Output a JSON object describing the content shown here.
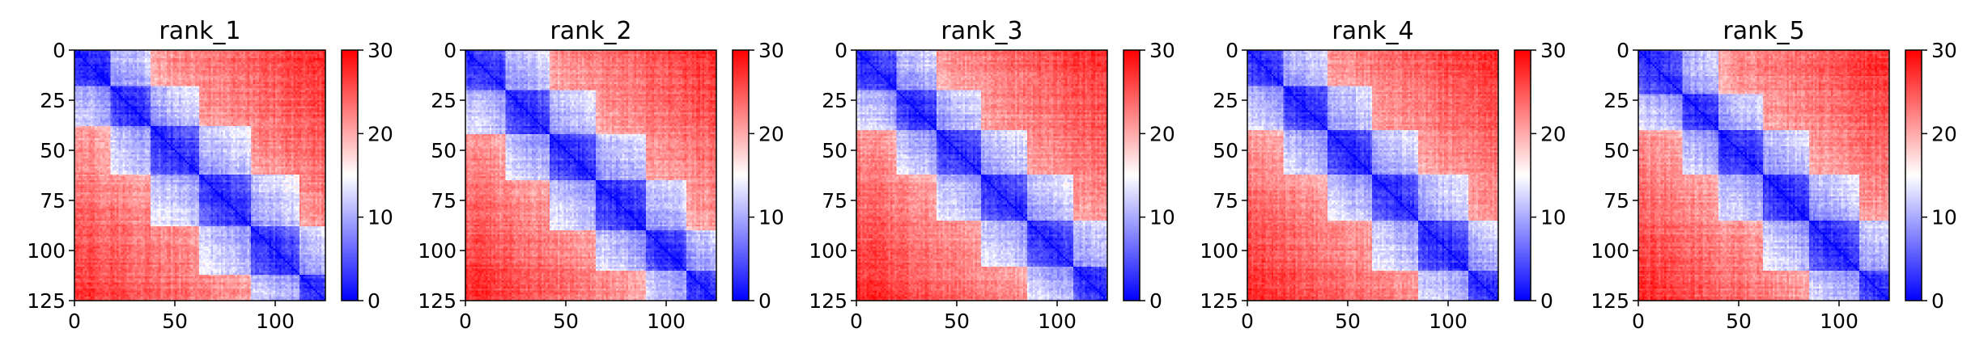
{
  "colormap": {
    "name": "bwr",
    "low_color": "#0000ff",
    "mid_color": "#ffffff",
    "high_color": "#ff0000",
    "vmin": 0,
    "vmax": 30,
    "ticks": [
      0,
      10,
      20,
      30
    ]
  },
  "chart_data": [
    {
      "type": "heatmap",
      "title": "rank_1",
      "n": 125,
      "x_ticks": [
        0,
        50,
        100
      ],
      "y_ticks": [
        0,
        25,
        50,
        75,
        100,
        125
      ],
      "domains": [
        [
          0,
          18
        ],
        [
          18,
          38
        ],
        [
          38,
          62
        ],
        [
          62,
          88
        ],
        [
          88,
          112
        ],
        [
          112,
          125
        ]
      ],
      "colorbar": {
        "min": 0,
        "max": 30,
        "ticks": [
          0,
          10,
          20,
          30
        ]
      }
    },
    {
      "type": "heatmap",
      "title": "rank_2",
      "n": 125,
      "x_ticks": [
        0,
        50,
        100
      ],
      "y_ticks": [
        0,
        25,
        50,
        75,
        100,
        125
      ],
      "domains": [
        [
          0,
          20
        ],
        [
          20,
          42
        ],
        [
          42,
          65
        ],
        [
          65,
          90
        ],
        [
          90,
          110
        ],
        [
          110,
          125
        ]
      ],
      "colorbar": {
        "min": 0,
        "max": 30,
        "ticks": [
          0,
          10,
          20,
          30
        ]
      }
    },
    {
      "type": "heatmap",
      "title": "rank_3",
      "n": 125,
      "x_ticks": [
        0,
        50,
        100
      ],
      "y_ticks": [
        0,
        25,
        50,
        75,
        100,
        125
      ],
      "domains": [
        [
          0,
          20
        ],
        [
          20,
          40
        ],
        [
          40,
          62
        ],
        [
          62,
          85
        ],
        [
          85,
          108
        ],
        [
          108,
          125
        ]
      ],
      "colorbar": {
        "min": 0,
        "max": 30,
        "ticks": [
          0,
          10,
          20,
          30
        ]
      }
    },
    {
      "type": "heatmap",
      "title": "rank_4",
      "n": 125,
      "x_ticks": [
        0,
        50,
        100
      ],
      "y_ticks": [
        0,
        25,
        50,
        75,
        100,
        125
      ],
      "domains": [
        [
          0,
          18
        ],
        [
          18,
          40
        ],
        [
          40,
          62
        ],
        [
          62,
          85
        ],
        [
          85,
          110
        ],
        [
          110,
          125
        ]
      ],
      "colorbar": {
        "min": 0,
        "max": 30,
        "ticks": [
          0,
          10,
          20,
          30
        ]
      }
    },
    {
      "type": "heatmap",
      "title": "rank_5",
      "n": 125,
      "x_ticks": [
        0,
        50,
        100
      ],
      "y_ticks": [
        0,
        25,
        50,
        75,
        100,
        125
      ],
      "domains": [
        [
          0,
          22
        ],
        [
          22,
          40
        ],
        [
          40,
          62
        ],
        [
          62,
          85
        ],
        [
          85,
          110
        ],
        [
          110,
          125
        ]
      ],
      "colorbar": {
        "min": 0,
        "max": 30,
        "ticks": [
          0,
          10,
          20,
          30
        ]
      }
    }
  ]
}
